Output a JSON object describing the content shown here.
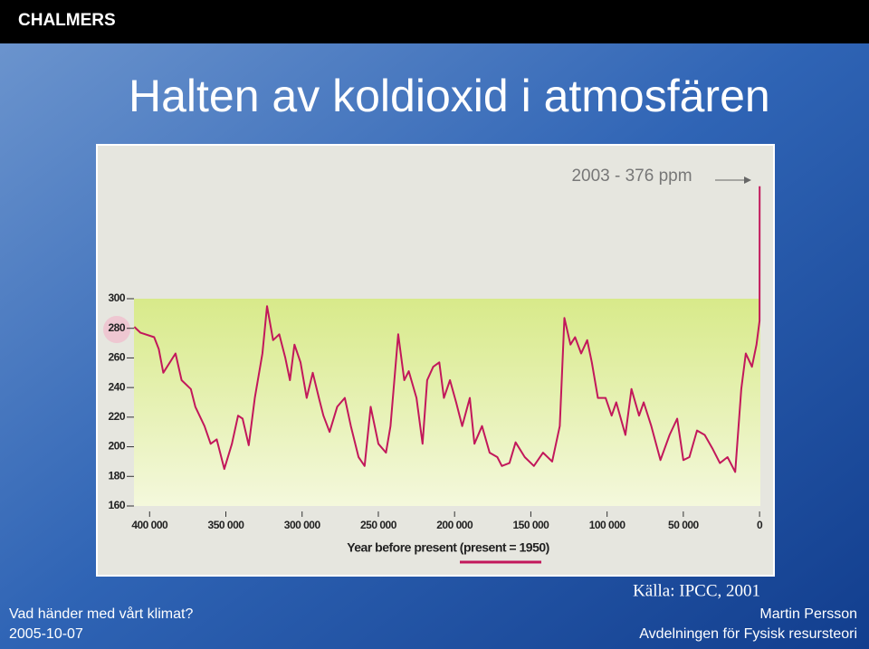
{
  "slide": {
    "brand": "CHALMERS",
    "title": "Halten av koldioxid i atmosfären",
    "source": "Källa: IPCC, 2001",
    "footer_left": "Vad händer med vårt klimat?",
    "date": "2005-10-07",
    "author": "Martin Persson",
    "department": "Avdelningen för Fysisk resursteori"
  },
  "chart_data": {
    "type": "line",
    "annotation": "2003 - 376 ppm",
    "x_label": "Year before present (present = 1950)",
    "color": "#c2185b",
    "x": [
      410000,
      406000,
      397000,
      394000,
      391000,
      383000,
      379000,
      373000,
      370000,
      364000,
      360000,
      356000,
      351000,
      346000,
      342000,
      339000,
      335000,
      331000,
      326000,
      323000,
      319000,
      315000,
      311000,
      308000,
      305000,
      301000,
      297000,
      293000,
      289000,
      286000,
      282000,
      277000,
      272000,
      268000,
      263000,
      259000,
      255000,
      250000,
      245000,
      242000,
      237000,
      233000,
      230000,
      225000,
      221000,
      218000,
      214000,
      210000,
      207000,
      203000,
      199000,
      195000,
      190000,
      187000,
      182000,
      177000,
      172000,
      169000,
      164000,
      160000,
      154000,
      148000,
      142000,
      136000,
      131000,
      128000,
      124000,
      121000,
      117000,
      113000,
      110000,
      106000,
      101000,
      97000,
      94000,
      88000,
      84000,
      79000,
      76000,
      71000,
      65000,
      59000,
      54000,
      50000,
      46000,
      41000,
      36000,
      31000,
      26000,
      21000,
      16000,
      12000,
      9000,
      5000,
      2000,
      0,
      -53
    ],
    "values": [
      281,
      277,
      274,
      266,
      250,
      263,
      245,
      239,
      227,
      214,
      202,
      205,
      185,
      202,
      221,
      219,
      201,
      233,
      263,
      295,
      272,
      276,
      260,
      245,
      269,
      257,
      233,
      250,
      233,
      221,
      210,
      227,
      233,
      214,
      193,
      187,
      227,
      202,
      196,
      214,
      276,
      245,
      251,
      233,
      202,
      245,
      254,
      257,
      233,
      245,
      230,
      214,
      233,
      202,
      214,
      196,
      193,
      187,
      189,
      203,
      193,
      187,
      196,
      190,
      214,
      287,
      269,
      274,
      263,
      272,
      257,
      233,
      233,
      221,
      230,
      208,
      239,
      221,
      230,
      214,
      191,
      208,
      219,
      191,
      193,
      211,
      208,
      199,
      189,
      193,
      183,
      239,
      263,
      254,
      269,
      285,
      376
    ],
    "xlim": [
      415000,
      -3500
    ],
    "xticks": [
      {
        "value": 400000,
        "label": "400 000"
      },
      {
        "value": 350000,
        "label": "350 000"
      },
      {
        "value": 300000,
        "label": "300 000"
      },
      {
        "value": 250000,
        "label": "250 000"
      },
      {
        "value": 200000,
        "label": "200 000"
      },
      {
        "value": 150000,
        "label": "150 000"
      },
      {
        "value": 100000,
        "label": "100 000"
      },
      {
        "value": 50000,
        "label": "50 000"
      },
      0
    ],
    "ylim": [
      160,
      390
    ],
    "yticks": [
      160,
      180,
      200,
      220,
      240,
      260,
      280,
      300
    ]
  }
}
